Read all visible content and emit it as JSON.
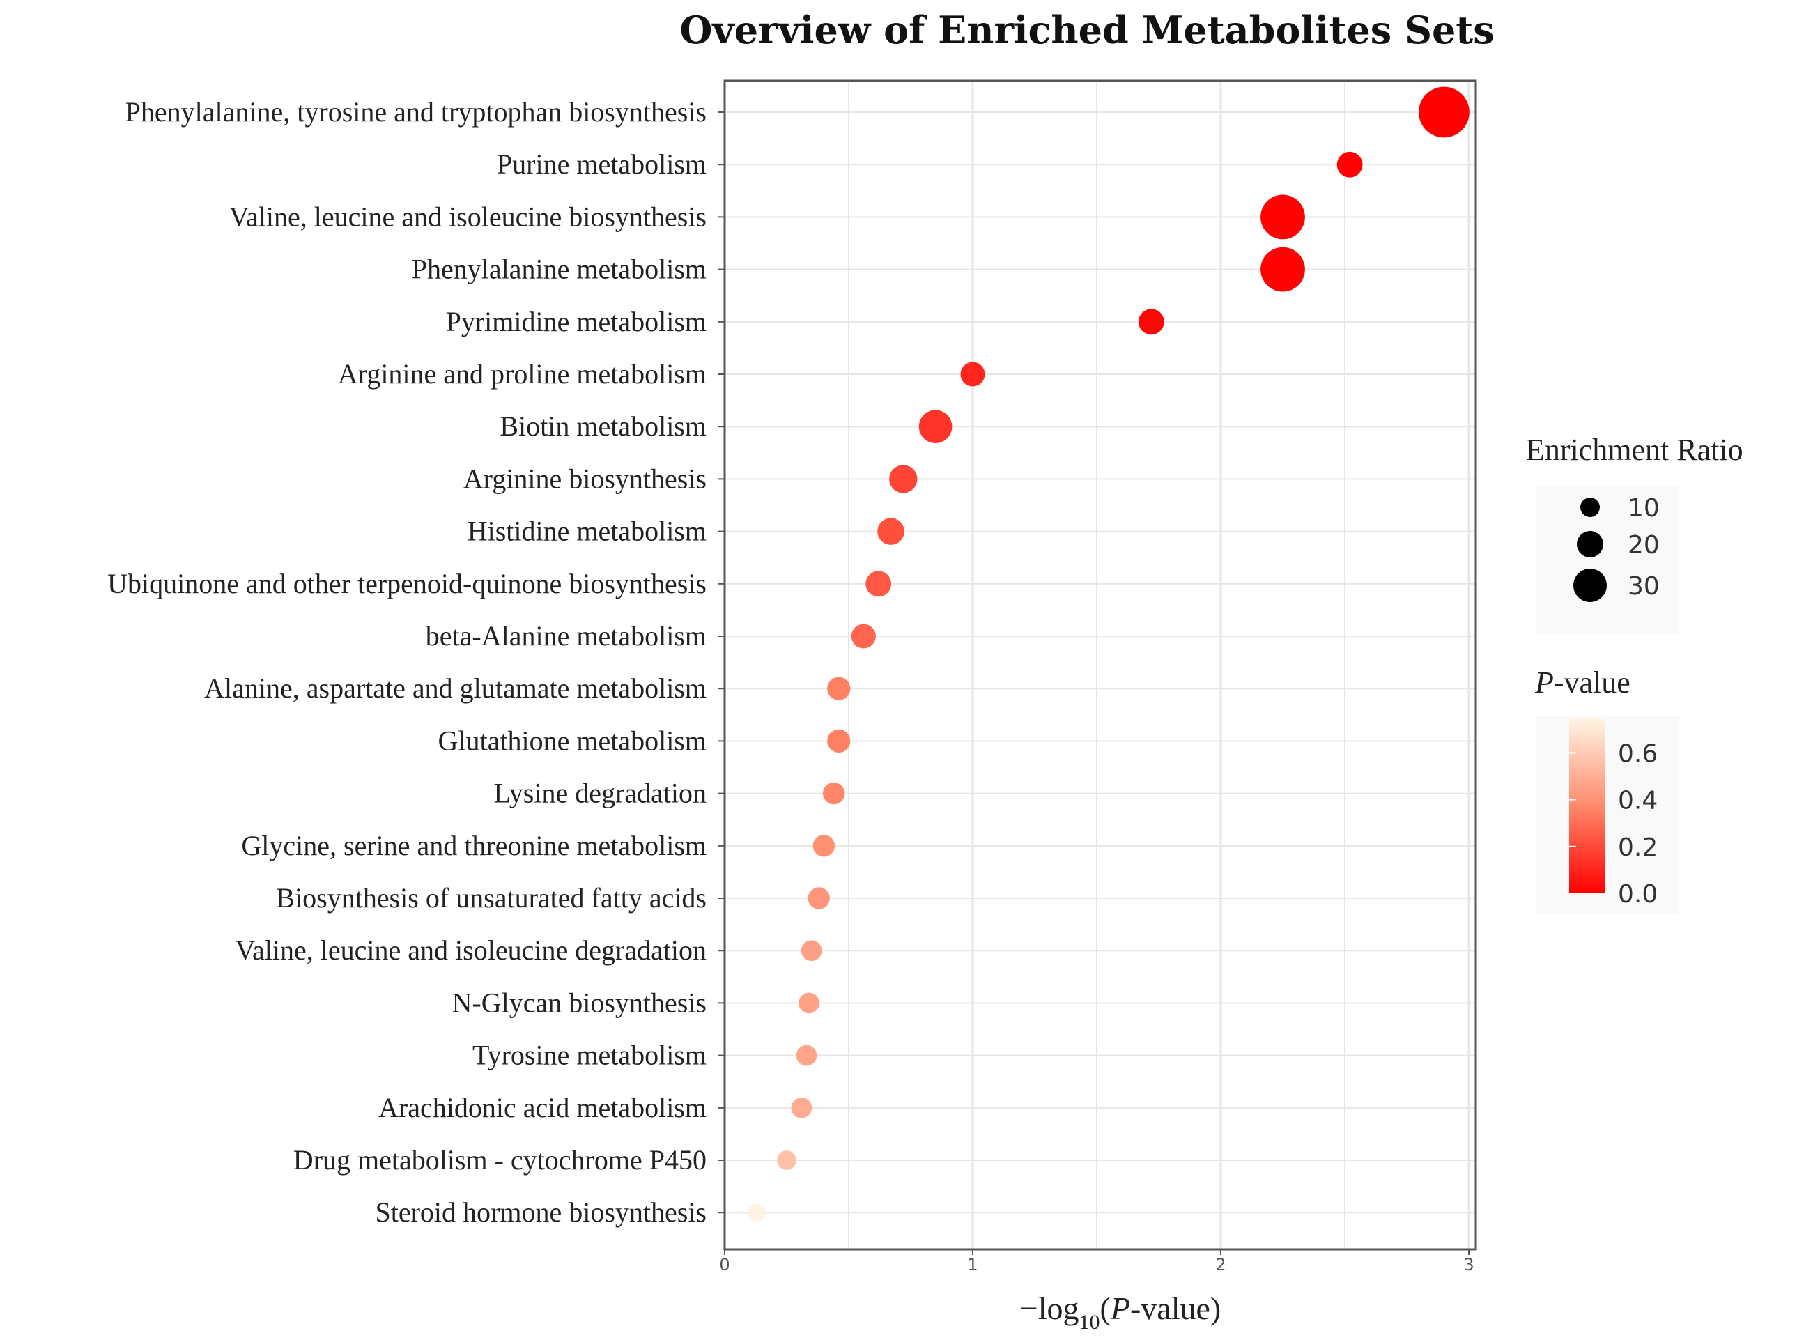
{
  "chart_data": {
    "type": "scatter",
    "title": "Overview of Enriched Metabolites Sets",
    "xlabel": "−log10(P-value)",
    "xlabel_parts": {
      "prefix": "−log",
      "subscript": "10",
      "open": "(",
      "italic": "P",
      "rest": "-value)"
    },
    "ylabel": "",
    "xlim": [
      0,
      3
    ],
    "x_ticks": [
      "0",
      "1",
      "2",
      "3"
    ],
    "grid": true,
    "categories": [
      "Phenylalanine, tyrosine and tryptophan biosynthesis",
      "Purine metabolism",
      "Valine, leucine and isoleucine biosynthesis",
      "Phenylalanine metabolism",
      "Pyrimidine metabolism",
      "Arginine and proline metabolism",
      "Biotin metabolism",
      "Arginine biosynthesis",
      "Histidine metabolism",
      "Ubiquinone and other terpenoid-quinone biosynthesis",
      "beta-Alanine metabolism",
      "Alanine, aspartate and glutamate metabolism",
      "Glutathione metabolism",
      "Lysine degradation",
      "Glycine, serine and threonine metabolism",
      "Biosynthesis of unsaturated fatty acids",
      "Valine, leucine and isoleucine degradation",
      "N-Glycan biosynthesis",
      "Tyrosine metabolism",
      "Arachidonic acid metabolism",
      "Drug metabolism - cytochrome P450",
      "Steroid hormone biosynthesis"
    ],
    "neg_log10_p": [
      2.9,
      2.52,
      2.25,
      2.25,
      1.72,
      1.0,
      0.85,
      0.72,
      0.67,
      0.62,
      0.56,
      0.46,
      0.46,
      0.44,
      0.4,
      0.38,
      0.35,
      0.34,
      0.33,
      0.31,
      0.25,
      0.13
    ],
    "enrichment_ratio": [
      30,
      10,
      25,
      25,
      10,
      9,
      16,
      12,
      11,
      10,
      9,
      8,
      8,
      7,
      7,
      7,
      6,
      6,
      6,
      6,
      5,
      4
    ],
    "size_legend": {
      "title": "Enrichment Ratio",
      "labels": [
        "10",
        "20",
        "30"
      ],
      "values": [
        10,
        20,
        30
      ]
    },
    "color_legend": {
      "title_italic": "P",
      "title_rest": "-value",
      "labels": [
        "0.6",
        "0.4",
        "0.2",
        "0.0"
      ],
      "values": [
        0.6,
        0.4,
        0.2,
        0.0
      ],
      "range": [
        0,
        0.75
      ],
      "color_low": "#ff0000",
      "color_high": "#fff6e6"
    }
  }
}
